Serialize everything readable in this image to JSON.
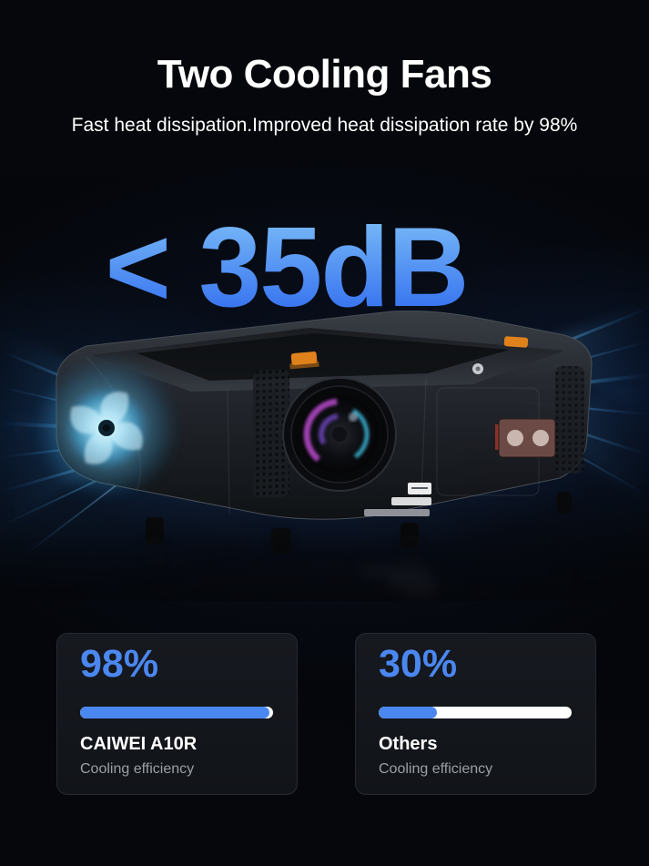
{
  "poster": {
    "title": "Two Cooling Fans",
    "subtitle": "Fast heat dissipation.Improved heat dissipation rate by 98%",
    "noise_level": "< 35dB"
  },
  "comparison": {
    "cards": [
      {
        "value": "98%",
        "percent": 98,
        "name": "CAIWEI A10R",
        "caption": "Cooling efficiency"
      },
      {
        "value": "30%",
        "percent": 30,
        "name": "Others",
        "caption": "Cooling efficiency"
      }
    ]
  },
  "colors": {
    "accent_blue": "#4b87f0",
    "noise_top": "#7fc1f8",
    "noise_bottom": "#2b66ee",
    "bar_track": "#ffffff",
    "card_bg": "#111419",
    "muted_text": "#9aa0a6",
    "title_text": "#ffffff",
    "fan_glow": "#8fdcf8",
    "accent_orange": "#e0821c",
    "background": "#04060b"
  }
}
